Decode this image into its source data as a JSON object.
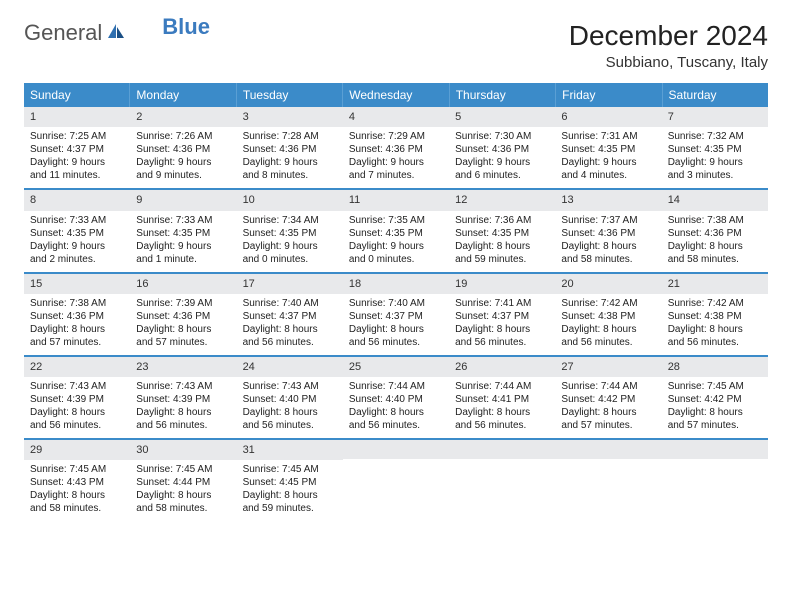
{
  "brand": {
    "general": "General",
    "blue": "Blue"
  },
  "title": "December 2024",
  "location": "Subbiano, Tuscany, Italy",
  "colors": {
    "header_bg": "#3b8bc9",
    "header_text": "#ffffff",
    "daynum_bg": "#e8e9eb",
    "week_divider": "#3b8bc9",
    "text": "#222222"
  },
  "day_headers": [
    "Sunday",
    "Monday",
    "Tuesday",
    "Wednesday",
    "Thursday",
    "Friday",
    "Saturday"
  ],
  "weeks": [
    [
      {
        "n": "1",
        "sr": "Sunrise: 7:25 AM",
        "ss": "Sunset: 4:37 PM",
        "dl": "Daylight: 9 hours and 11 minutes."
      },
      {
        "n": "2",
        "sr": "Sunrise: 7:26 AM",
        "ss": "Sunset: 4:36 PM",
        "dl": "Daylight: 9 hours and 9 minutes."
      },
      {
        "n": "3",
        "sr": "Sunrise: 7:28 AM",
        "ss": "Sunset: 4:36 PM",
        "dl": "Daylight: 9 hours and 8 minutes."
      },
      {
        "n": "4",
        "sr": "Sunrise: 7:29 AM",
        "ss": "Sunset: 4:36 PM",
        "dl": "Daylight: 9 hours and 7 minutes."
      },
      {
        "n": "5",
        "sr": "Sunrise: 7:30 AM",
        "ss": "Sunset: 4:36 PM",
        "dl": "Daylight: 9 hours and 6 minutes."
      },
      {
        "n": "6",
        "sr": "Sunrise: 7:31 AM",
        "ss": "Sunset: 4:35 PM",
        "dl": "Daylight: 9 hours and 4 minutes."
      },
      {
        "n": "7",
        "sr": "Sunrise: 7:32 AM",
        "ss": "Sunset: 4:35 PM",
        "dl": "Daylight: 9 hours and 3 minutes."
      }
    ],
    [
      {
        "n": "8",
        "sr": "Sunrise: 7:33 AM",
        "ss": "Sunset: 4:35 PM",
        "dl": "Daylight: 9 hours and 2 minutes."
      },
      {
        "n": "9",
        "sr": "Sunrise: 7:33 AM",
        "ss": "Sunset: 4:35 PM",
        "dl": "Daylight: 9 hours and 1 minute."
      },
      {
        "n": "10",
        "sr": "Sunrise: 7:34 AM",
        "ss": "Sunset: 4:35 PM",
        "dl": "Daylight: 9 hours and 0 minutes."
      },
      {
        "n": "11",
        "sr": "Sunrise: 7:35 AM",
        "ss": "Sunset: 4:35 PM",
        "dl": "Daylight: 9 hours and 0 minutes."
      },
      {
        "n": "12",
        "sr": "Sunrise: 7:36 AM",
        "ss": "Sunset: 4:35 PM",
        "dl": "Daylight: 8 hours and 59 minutes."
      },
      {
        "n": "13",
        "sr": "Sunrise: 7:37 AM",
        "ss": "Sunset: 4:36 PM",
        "dl": "Daylight: 8 hours and 58 minutes."
      },
      {
        "n": "14",
        "sr": "Sunrise: 7:38 AM",
        "ss": "Sunset: 4:36 PM",
        "dl": "Daylight: 8 hours and 58 minutes."
      }
    ],
    [
      {
        "n": "15",
        "sr": "Sunrise: 7:38 AM",
        "ss": "Sunset: 4:36 PM",
        "dl": "Daylight: 8 hours and 57 minutes."
      },
      {
        "n": "16",
        "sr": "Sunrise: 7:39 AM",
        "ss": "Sunset: 4:36 PM",
        "dl": "Daylight: 8 hours and 57 minutes."
      },
      {
        "n": "17",
        "sr": "Sunrise: 7:40 AM",
        "ss": "Sunset: 4:37 PM",
        "dl": "Daylight: 8 hours and 56 minutes."
      },
      {
        "n": "18",
        "sr": "Sunrise: 7:40 AM",
        "ss": "Sunset: 4:37 PM",
        "dl": "Daylight: 8 hours and 56 minutes."
      },
      {
        "n": "19",
        "sr": "Sunrise: 7:41 AM",
        "ss": "Sunset: 4:37 PM",
        "dl": "Daylight: 8 hours and 56 minutes."
      },
      {
        "n": "20",
        "sr": "Sunrise: 7:42 AM",
        "ss": "Sunset: 4:38 PM",
        "dl": "Daylight: 8 hours and 56 minutes."
      },
      {
        "n": "21",
        "sr": "Sunrise: 7:42 AM",
        "ss": "Sunset: 4:38 PM",
        "dl": "Daylight: 8 hours and 56 minutes."
      }
    ],
    [
      {
        "n": "22",
        "sr": "Sunrise: 7:43 AM",
        "ss": "Sunset: 4:39 PM",
        "dl": "Daylight: 8 hours and 56 minutes."
      },
      {
        "n": "23",
        "sr": "Sunrise: 7:43 AM",
        "ss": "Sunset: 4:39 PM",
        "dl": "Daylight: 8 hours and 56 minutes."
      },
      {
        "n": "24",
        "sr": "Sunrise: 7:43 AM",
        "ss": "Sunset: 4:40 PM",
        "dl": "Daylight: 8 hours and 56 minutes."
      },
      {
        "n": "25",
        "sr": "Sunrise: 7:44 AM",
        "ss": "Sunset: 4:40 PM",
        "dl": "Daylight: 8 hours and 56 minutes."
      },
      {
        "n": "26",
        "sr": "Sunrise: 7:44 AM",
        "ss": "Sunset: 4:41 PM",
        "dl": "Daylight: 8 hours and 56 minutes."
      },
      {
        "n": "27",
        "sr": "Sunrise: 7:44 AM",
        "ss": "Sunset: 4:42 PM",
        "dl": "Daylight: 8 hours and 57 minutes."
      },
      {
        "n": "28",
        "sr": "Sunrise: 7:45 AM",
        "ss": "Sunset: 4:42 PM",
        "dl": "Daylight: 8 hours and 57 minutes."
      }
    ],
    [
      {
        "n": "29",
        "sr": "Sunrise: 7:45 AM",
        "ss": "Sunset: 4:43 PM",
        "dl": "Daylight: 8 hours and 58 minutes."
      },
      {
        "n": "30",
        "sr": "Sunrise: 7:45 AM",
        "ss": "Sunset: 4:44 PM",
        "dl": "Daylight: 8 hours and 58 minutes."
      },
      {
        "n": "31",
        "sr": "Sunrise: 7:45 AM",
        "ss": "Sunset: 4:45 PM",
        "dl": "Daylight: 8 hours and 59 minutes."
      },
      null,
      null,
      null,
      null
    ]
  ]
}
